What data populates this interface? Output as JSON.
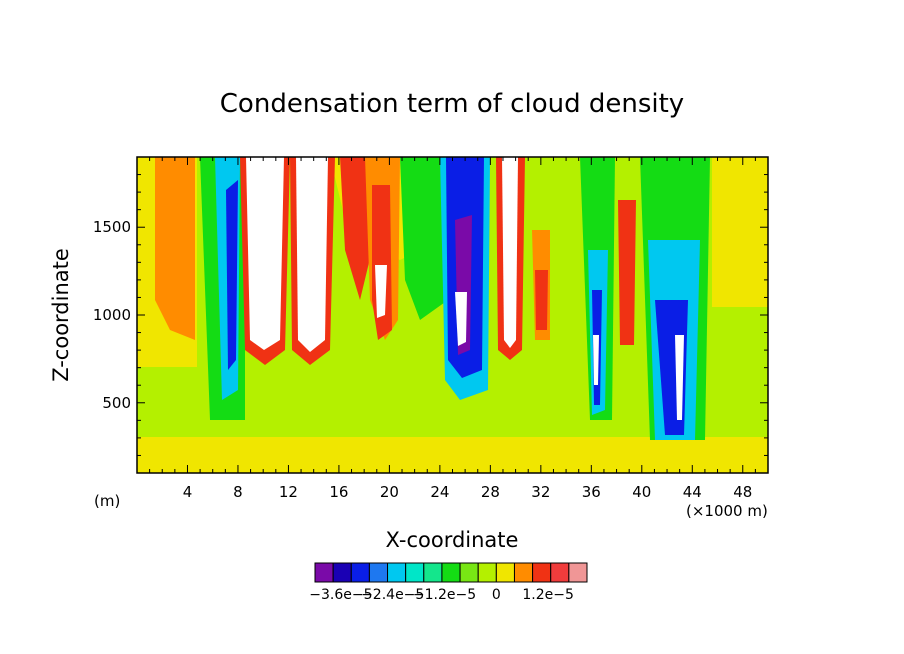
{
  "chart_data": {
    "type": "heatmap",
    "title": "Condensation term of cloud density",
    "xlabel": "X-coordinate",
    "ylabel": "Z-coordinate",
    "x_unit_label": "(×1000 m)",
    "y_unit_label": "(m)",
    "xlim": [
      0,
      50
    ],
    "ylim": [
      100,
      1900
    ],
    "x_ticks": [
      4,
      8,
      12,
      16,
      20,
      24,
      28,
      32,
      36,
      40,
      44,
      48
    ],
    "y_ticks": [
      500,
      1000,
      1500
    ],
    "colorbar": {
      "colors": [
        "#7a0aa8",
        "#1a00b4",
        "#0a1ee6",
        "#1e78f0",
        "#00c8f0",
        "#00e6c8",
        "#14e68c",
        "#14dc14",
        "#78e614",
        "#b4f000",
        "#f0e600",
        "#ff8c00",
        "#f03214",
        "#f03c3c",
        "#f09696"
      ],
      "tick_labels": [
        "−3.6e−5",
        "−2.4e−5",
        "−1.2e−5",
        "0",
        "1.2e−5"
      ],
      "tick_levels": [
        -3.6e-05,
        -2.4e-05,
        -1.2e-05,
        0,
        1.2e-05
      ],
      "levels": [
        -4.2e-05,
        -3.6e-05,
        -3e-05,
        -2.4e-05,
        -1.8e-05,
        -1.2e-05,
        -6e-06,
        -3e-06,
        0,
        3e-06,
        6e-06,
        9e-06,
        1.2e-05,
        1.5e-05,
        1.8e-05,
        2.1e-05
      ]
    },
    "field": [
      {
        "x": [
          0,
          6
        ],
        "z": [
          100,
          1900
        ],
        "value": "yellow"
      },
      {
        "x": [
          1.5,
          5
        ],
        "z": [
          900,
          1900
        ],
        "value": "orange"
      },
      {
        "x": [
          5,
          7.5
        ],
        "z": [
          400,
          1900
        ],
        "value": "green"
      },
      {
        "x": [
          6,
          8
        ],
        "z": [
          600,
          1500
        ],
        "value": "blue"
      },
      {
        "x": [
          8,
          11
        ],
        "z": [
          700,
          1900
        ],
        "value": "white-core"
      },
      {
        "x": [
          12,
          15
        ],
        "z": [
          700,
          1900
        ],
        "value": "white-core"
      },
      {
        "x": [
          16,
          20
        ],
        "z": [
          900,
          1900
        ],
        "value": "red"
      },
      {
        "x": [
          18.8,
          19.8
        ],
        "z": [
          1000,
          1300
        ],
        "value": "white-core"
      },
      {
        "x": [
          20,
          24
        ],
        "z": [
          300,
          1900
        ],
        "value": "green"
      },
      {
        "x": [
          24.5,
          27
        ],
        "z": [
          650,
          1900
        ],
        "value": "blue"
      },
      {
        "x": [
          25,
          26.5
        ],
        "z": [
          850,
          1100
        ],
        "value": "white-core"
      },
      {
        "x": [
          29,
          30.5
        ],
        "z": [
          800,
          1900
        ],
        "value": "white-core"
      },
      {
        "x": [
          31.5,
          35
        ],
        "z": [
          900,
          1400
        ],
        "value": "red"
      },
      {
        "x": [
          35.5,
          37
        ],
        "z": [
          400,
          1200
        ],
        "value": "blue"
      },
      {
        "x": [
          36,
          36.6
        ],
        "z": [
          600,
          900
        ],
        "value": "white-core"
      },
      {
        "x": [
          38,
          39.5
        ],
        "z": [
          800,
          1500
        ],
        "value": "red"
      },
      {
        "x": [
          40,
          44
        ],
        "z": [
          300,
          1900
        ],
        "value": "green"
      },
      {
        "x": [
          41,
          43.5
        ],
        "z": [
          300,
          1100
        ],
        "value": "blue"
      },
      {
        "x": [
          42.8,
          43.5
        ],
        "z": [
          400,
          900
        ],
        "value": "white-core"
      },
      {
        "x": [
          45,
          50
        ],
        "z": [
          100,
          1900
        ],
        "value": "yellow"
      }
    ]
  }
}
